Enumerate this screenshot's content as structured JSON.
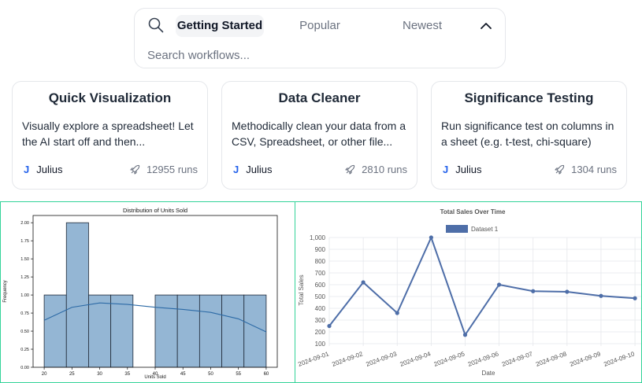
{
  "search": {
    "tabs": [
      {
        "label": "Getting Started",
        "active": true
      },
      {
        "label": "Popular",
        "active": false
      },
      {
        "label": "Newest",
        "active": false
      }
    ],
    "placeholder": "Search workflows..."
  },
  "cards": [
    {
      "title": "Quick Visualization",
      "description": "Visually explore a spreadsheet! Let the AI start off and then...",
      "author": "Julius",
      "author_logo": "J",
      "runs": "12955 runs"
    },
    {
      "title": "Data Cleaner",
      "description": "Methodically clean your data from a CSV, Spreadsheet, or other file...",
      "author": "Julius",
      "author_logo": "J",
      "runs": "2810 runs"
    },
    {
      "title": "Significance Testing",
      "description": "Run significance test on columns in a sheet (e.g. t-test, chi-square)",
      "author": "Julius",
      "author_logo": "J",
      "runs": "1304 runs"
    }
  ],
  "icons": {
    "search": "search-icon",
    "collapse": "chevron-up-icon",
    "runs": "rocket-icon",
    "author": "julius-logo"
  },
  "colors": {
    "accent": "#2563eb",
    "panel_border": "#34d399",
    "histogram_fill": "#94b6d4",
    "line_series": "#4e6ea8"
  },
  "chart_data": [
    {
      "type": "bar",
      "title": "Distribution of Units Sold",
      "xlabel": "Units Sold",
      "ylabel": "Frequency",
      "bins": [
        {
          "x0": 20,
          "x1": 24,
          "count": 1
        },
        {
          "x0": 24,
          "x1": 28,
          "count": 2
        },
        {
          "x0": 28,
          "x1": 32,
          "count": 1
        },
        {
          "x0": 32,
          "x1": 36,
          "count": 1
        },
        {
          "x0": 36,
          "x1": 40,
          "count": 0
        },
        {
          "x0": 40,
          "x1": 44,
          "count": 1
        },
        {
          "x0": 44,
          "x1": 48,
          "count": 1
        },
        {
          "x0": 48,
          "x1": 52,
          "count": 1
        },
        {
          "x0": 52,
          "x1": 56,
          "count": 1
        },
        {
          "x0": 56,
          "x1": 60,
          "count": 1
        }
      ],
      "kde": {
        "x": [
          20,
          25,
          30,
          35,
          40,
          45,
          50,
          55,
          60
        ],
        "y": [
          0.65,
          0.83,
          0.89,
          0.87,
          0.83,
          0.8,
          0.76,
          0.67,
          0.49
        ]
      },
      "xticks": [
        20,
        25,
        30,
        35,
        40,
        45,
        50,
        55,
        60
      ],
      "yticks": [
        "0.00",
        "0.25",
        "0.50",
        "0.75",
        "1.00",
        "1.25",
        "1.50",
        "1.75",
        "2.00"
      ],
      "xlim": [
        18,
        62
      ],
      "ylim": [
        0,
        2.1
      ],
      "grid": false
    },
    {
      "type": "line",
      "title": "Total Sales Over Time",
      "xlabel": "Date",
      "ylabel": "Total Sales",
      "legend": "top-center",
      "categories": [
        "2024-09-01",
        "2024-09-02",
        "2024-09-03",
        "2024-09-04",
        "2024-09-05",
        "2024-09-06",
        "2024-09-07",
        "2024-09-08",
        "2024-09-09",
        "2024-09-10"
      ],
      "series": [
        {
          "name": "Dataset 1",
          "values": [
            250,
            620,
            360,
            1000,
            175,
            600,
            545,
            540,
            505,
            485
          ]
        }
      ],
      "yticks": [
        "100",
        "200",
        "300",
        "400",
        "500",
        "600",
        "700",
        "800",
        "900",
        "1,000"
      ],
      "ylim": [
        100,
        1000
      ],
      "grid": true
    }
  ]
}
